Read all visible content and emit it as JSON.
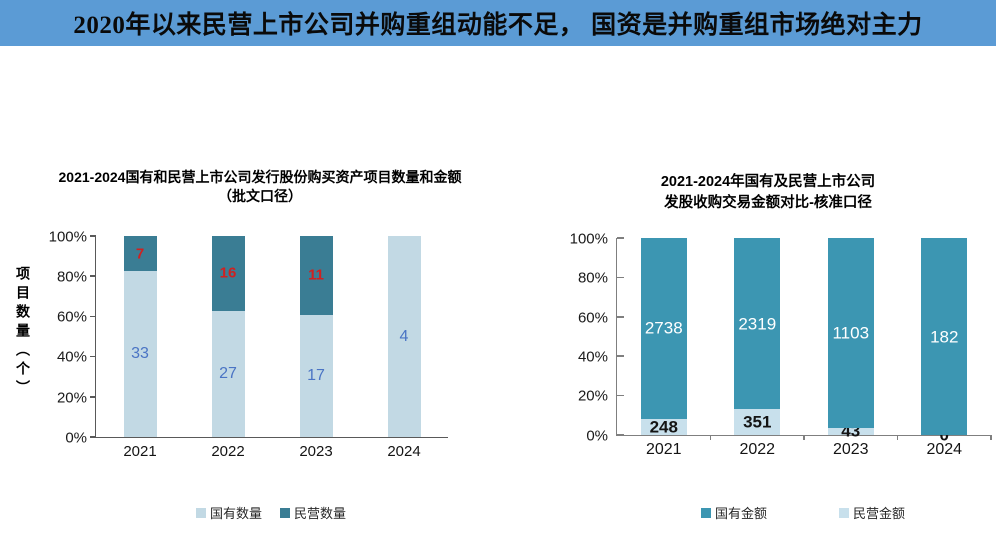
{
  "banner": {
    "title": "2020年以来民营上市公司并购重组动能不足， 国资是并购重组市场绝对主力"
  },
  "theme": {
    "banner_bg": "#5b9bd5",
    "light_blue": "#c2d9e4",
    "dark_teal_left": "#3a7d94",
    "dark_teal_right": "#3c96b2",
    "red_label": "#cf2121",
    "blue_label": "#4a74c4"
  },
  "chart_data": [
    {
      "type": "bar",
      "stacked": "percent",
      "title_lines": [
        "2021-2024国有和民营上市公司发行股份购买资产项目数量和金额",
        "（批文口径）"
      ],
      "y_axis_label": "项目数量（个）",
      "categories": [
        "2021",
        "2022",
        "2023",
        "2024"
      ],
      "series": [
        {
          "name": "国有数量",
          "color": "#c2d9e4",
          "label_color": "#4a74c4",
          "values": [
            33,
            27,
            17,
            4
          ]
        },
        {
          "name": "民营数量",
          "color": "#3a7d94",
          "label_color": "#cf2121",
          "values": [
            7,
            16,
            11,
            0
          ]
        }
      ],
      "y_ticks": [
        "0%",
        "20%",
        "40%",
        "60%",
        "80%",
        "100%"
      ],
      "ylim": [
        0,
        100
      ],
      "legend_order": [
        0,
        1
      ],
      "show_zero_labels": false,
      "x_tick_marks": false,
      "grid": false,
      "legend_position": "bottom"
    },
    {
      "type": "bar",
      "stacked": "percent",
      "title_lines": [
        "2021-2024年国有及民营上市公司",
        "发股收购交易金额对比-核准口径"
      ],
      "y_axis_label": "",
      "categories": [
        "2021",
        "2022",
        "2023",
        "2024"
      ],
      "series": [
        {
          "name": "民营金额",
          "color": "#c8e0ec",
          "label_color": "#141414",
          "values": [
            248,
            351,
            43,
            0
          ]
        },
        {
          "name": "国有金额",
          "color": "#3c96b2",
          "label_color": "#ffffff",
          "values": [
            2738,
            2319,
            1103,
            182
          ]
        }
      ],
      "y_ticks": [
        "0%",
        "20%",
        "40%",
        "60%",
        "80%",
        "100%"
      ],
      "ylim": [
        0,
        100
      ],
      "legend_order": [
        1,
        0
      ],
      "show_zero_labels": true,
      "x_tick_marks": true,
      "grid": false,
      "legend_position": "bottom"
    }
  ]
}
